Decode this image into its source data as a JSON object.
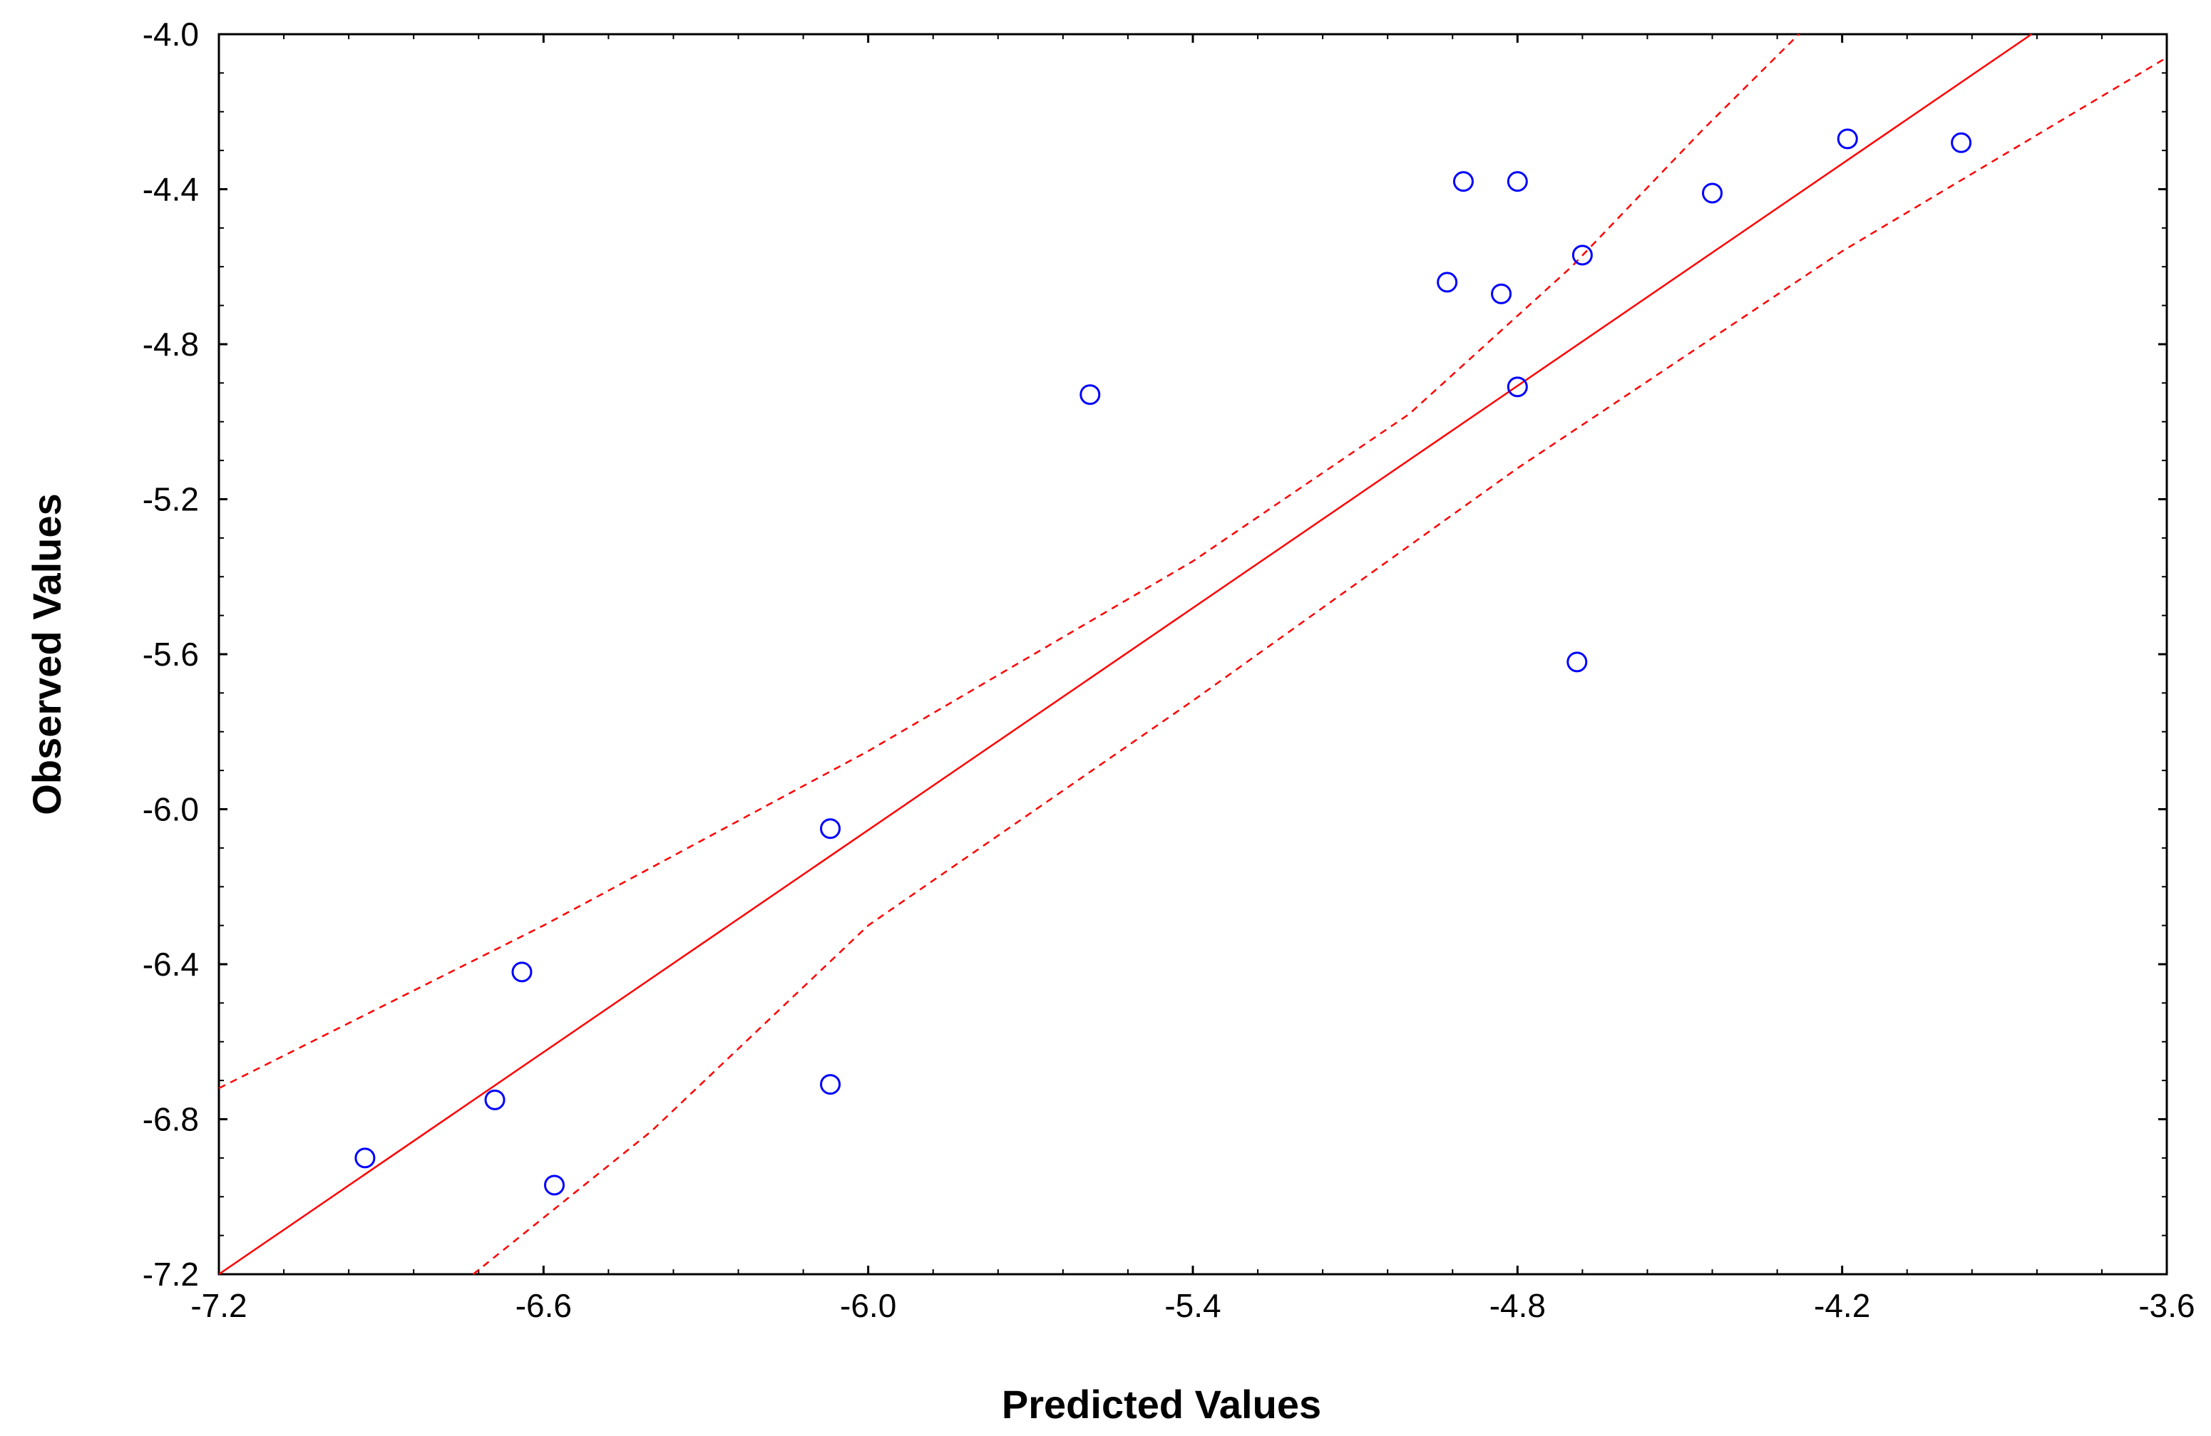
{
  "chart_data": {
    "type": "scatter",
    "xlabel": "Predicted Values",
    "ylabel": "Observed Values",
    "xlim": [
      -7.2,
      -3.6
    ],
    "ylim": [
      -7.2,
      -4.0
    ],
    "xticks": [
      -7.2,
      -6.6,
      -6.0,
      -5.4,
      -4.8,
      -4.2,
      -3.6
    ],
    "xtick_labels": [
      "-7.2",
      "-6.6",
      "-6.0",
      "-5.4",
      "-4.8",
      "-4.2",
      "-3.6"
    ],
    "yticks": [
      -4.0,
      -4.4,
      -4.8,
      -5.2,
      -5.6,
      -6.0,
      -6.4,
      -6.8,
      -7.2
    ],
    "ytick_labels": [
      "-4.0",
      "-4.4",
      "-4.8",
      "-5.2",
      "-5.6",
      "-6.0",
      "-6.4",
      "-6.8",
      "-7.2"
    ],
    "grid": false,
    "points": [
      {
        "x": -6.93,
        "y": -6.9
      },
      {
        "x": -6.69,
        "y": -6.75
      },
      {
        "x": -6.64,
        "y": -6.42
      },
      {
        "x": -6.58,
        "y": -6.97
      },
      {
        "x": -6.07,
        "y": -6.05
      },
      {
        "x": -6.07,
        "y": -6.71
      },
      {
        "x": -5.59,
        "y": -4.93
      },
      {
        "x": -4.93,
        "y": -4.64
      },
      {
        "x": -4.9,
        "y": -4.38
      },
      {
        "x": -4.83,
        "y": -4.67
      },
      {
        "x": -4.8,
        "y": -4.38
      },
      {
        "x": -4.8,
        "y": -4.91
      },
      {
        "x": -4.69,
        "y": -5.62
      },
      {
        "x": -4.68,
        "y": -4.57
      },
      {
        "x": -4.44,
        "y": -4.41
      },
      {
        "x": -4.19,
        "y": -4.27
      },
      {
        "x": -3.98,
        "y": -4.28
      }
    ],
    "fit_line": [
      {
        "x": -7.2,
        "y": -7.2
      },
      {
        "x": -3.85,
        "y": -4.0
      }
    ],
    "upper_ci": [
      {
        "x": -7.2,
        "y": -6.72
      },
      {
        "x": -6.6,
        "y": -6.3
      },
      {
        "x": -6.0,
        "y": -5.85
      },
      {
        "x": -5.4,
        "y": -5.36
      },
      {
        "x": -5.0,
        "y": -4.98
      },
      {
        "x": -4.7,
        "y": -4.6
      },
      {
        "x": -4.46,
        "y": -4.25
      },
      {
        "x": -4.28,
        "y": -4.0
      }
    ],
    "lower_ci": [
      {
        "x": -6.73,
        "y": -7.2
      },
      {
        "x": -6.4,
        "y": -6.83
      },
      {
        "x": -6.0,
        "y": -6.3
      },
      {
        "x": -5.4,
        "y": -5.72
      },
      {
        "x": -4.8,
        "y": -5.12
      },
      {
        "x": -4.2,
        "y": -4.56
      },
      {
        "x": -3.6,
        "y": -4.06
      }
    ],
    "colors": {
      "points": "#0000ff",
      "lines": "#ff0000",
      "axes": "#000000"
    }
  }
}
